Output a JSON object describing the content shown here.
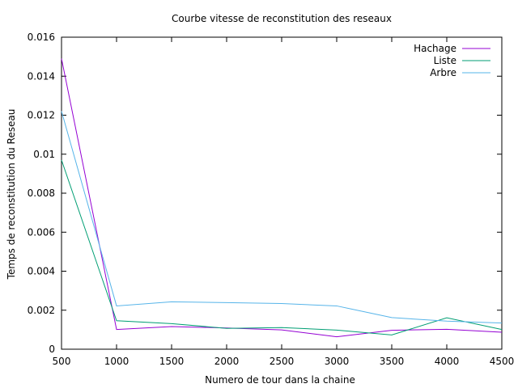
{
  "chart_data": {
    "type": "line",
    "title": "Courbe vitesse de reconstitution des reseaux",
    "xlabel": "Numero de tour dans la chaine",
    "ylabel": "Temps de reconstitution du Reseau",
    "xlim": [
      500,
      4500
    ],
    "ylim": [
      0,
      0.016
    ],
    "grid": false,
    "legend_position": "top-right",
    "x": [
      500,
      1000,
      1500,
      2000,
      2500,
      3000,
      3500,
      4000,
      4500
    ],
    "x_ticks": [
      "500",
      "1000",
      "1500",
      "2000",
      "2500",
      "3000",
      "3500",
      "4000",
      "4500"
    ],
    "y_tick_values": [
      0,
      0.002,
      0.004,
      0.006,
      0.008,
      0.01,
      0.012,
      0.014,
      0.016
    ],
    "y_ticks": [
      "0",
      "0.002",
      "0.004",
      "0.006",
      "0.008",
      "0.01",
      "0.012",
      "0.014",
      "0.016"
    ],
    "series": [
      {
        "name": "Hachage",
        "color": "#9400d3",
        "values": [
          0.0149,
          0.00101,
          0.00116,
          0.00109,
          0.00099,
          0.00064,
          0.00097,
          0.00102,
          0.00087
        ]
      },
      {
        "name": "Liste",
        "color": "#009e73",
        "values": [
          0.0097,
          0.00146,
          0.00131,
          0.00107,
          0.00111,
          0.00098,
          0.00073,
          0.00161,
          0.00101
        ]
      },
      {
        "name": "Arbre",
        "color": "#56b4e9",
        "values": [
          0.0122,
          0.00222,
          0.00243,
          0.00239,
          0.00234,
          0.00222,
          0.00162,
          0.00144,
          0.00134
        ]
      }
    ]
  }
}
